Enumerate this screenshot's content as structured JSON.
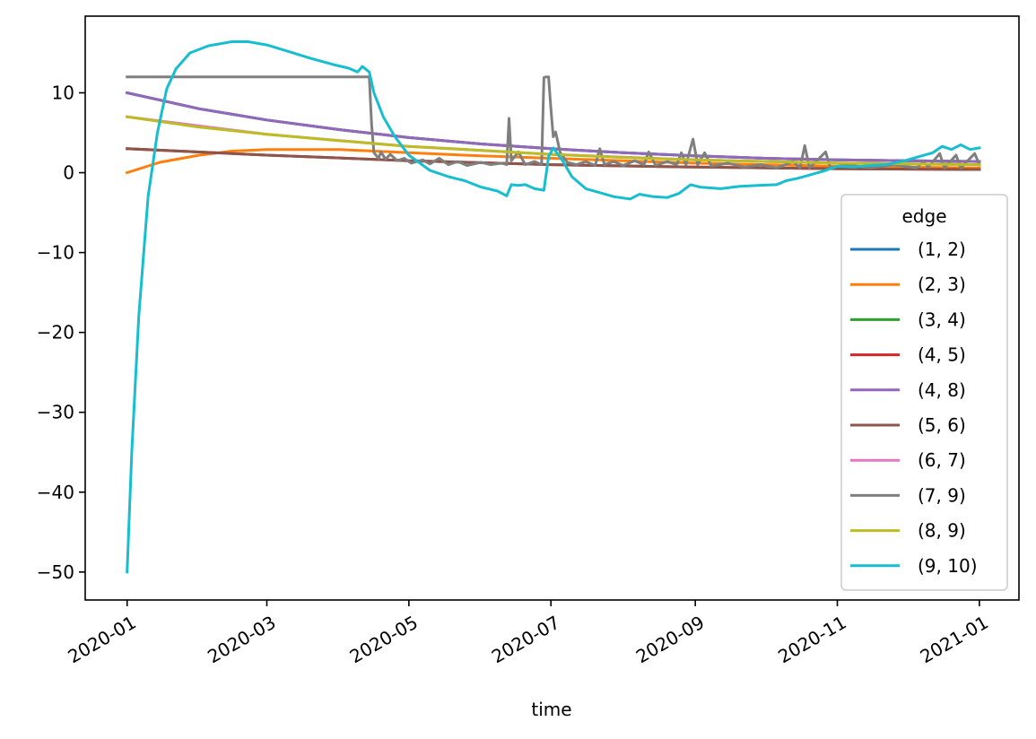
{
  "chart_data": {
    "type": "line",
    "title": "",
    "xlabel": "time",
    "ylabel": "",
    "xlim": [
      "2019-12-14",
      "2021-01-18"
    ],
    "ylim": [
      -53.5,
      19.6
    ],
    "x_ticks": [
      {
        "date": "2020-01-01",
        "label": "2020-01"
      },
      {
        "date": "2020-03-01",
        "label": "2020-03"
      },
      {
        "date": "2020-05-01",
        "label": "2020-05"
      },
      {
        "date": "2020-07-01",
        "label": "2020-07"
      },
      {
        "date": "2020-09-01",
        "label": "2020-09"
      },
      {
        "date": "2020-11-01",
        "label": "2020-11"
      },
      {
        "date": "2021-01-01",
        "label": "2021-01"
      }
    ],
    "y_ticks": [
      {
        "value": 10,
        "label": "10"
      },
      {
        "value": 0,
        "label": "0"
      },
      {
        "value": -10,
        "label": "−10"
      },
      {
        "value": -20,
        "label": "−20"
      },
      {
        "value": -30,
        "label": "−30"
      },
      {
        "value": -40,
        "label": "−40"
      },
      {
        "value": -50,
        "label": "−50"
      }
    ],
    "grid": false,
    "legend": {
      "title": "edge",
      "position": "lower-right"
    },
    "series": [
      {
        "name": "(1, 2)",
        "color": "#1f77b4",
        "points": [
          [
            "2020-01-01",
            10.0
          ],
          [
            "2020-02-01",
            8.0
          ],
          [
            "2020-03-01",
            6.6
          ],
          [
            "2020-04-01",
            5.4
          ],
          [
            "2020-05-01",
            4.4
          ],
          [
            "2020-06-01",
            3.6
          ],
          [
            "2020-07-01",
            3.0
          ],
          [
            "2020-08-01",
            2.5
          ],
          [
            "2020-09-01",
            2.1
          ],
          [
            "2020-10-01",
            1.8
          ],
          [
            "2020-11-01",
            1.6
          ],
          [
            "2020-12-01",
            1.5
          ],
          [
            "2021-01-01",
            1.4
          ]
        ]
      },
      {
        "name": "(2, 3)",
        "color": "#ff7f0e",
        "points": [
          [
            "2020-01-01",
            0.0
          ],
          [
            "2020-01-15",
            1.3
          ],
          [
            "2020-02-01",
            2.2
          ],
          [
            "2020-02-15",
            2.7
          ],
          [
            "2020-03-01",
            2.9
          ],
          [
            "2020-04-01",
            2.9
          ],
          [
            "2020-05-01",
            2.5
          ],
          [
            "2020-06-01",
            2.1
          ],
          [
            "2020-07-01",
            1.8
          ],
          [
            "2020-08-01",
            1.5
          ],
          [
            "2020-09-01",
            1.2
          ],
          [
            "2020-10-01",
            1.0
          ],
          [
            "2020-11-01",
            0.8
          ],
          [
            "2020-12-01",
            0.7
          ],
          [
            "2021-01-01",
            0.6
          ]
        ]
      },
      {
        "name": "(3, 4)",
        "color": "#2ca02c",
        "points": [
          [
            "2020-01-01",
            10.0
          ],
          [
            "2020-02-01",
            8.0
          ],
          [
            "2020-03-01",
            6.6
          ],
          [
            "2020-04-01",
            5.4
          ],
          [
            "2020-05-01",
            4.4
          ],
          [
            "2020-06-01",
            3.6
          ],
          [
            "2020-07-01",
            3.0
          ],
          [
            "2020-08-01",
            2.5
          ],
          [
            "2020-09-01",
            2.1
          ],
          [
            "2020-10-01",
            1.8
          ],
          [
            "2020-11-01",
            1.6
          ],
          [
            "2020-12-01",
            1.5
          ],
          [
            "2021-01-01",
            1.4
          ]
        ]
      },
      {
        "name": "(4, 5)",
        "color": "#d62728",
        "points": [
          [
            "2020-01-01",
            3.0
          ],
          [
            "2020-03-01",
            2.2
          ],
          [
            "2020-05-01",
            1.5
          ],
          [
            "2020-07-01",
            1.0
          ],
          [
            "2020-09-01",
            0.7
          ],
          [
            "2020-11-01",
            0.5
          ],
          [
            "2021-01-01",
            0.4
          ]
        ]
      },
      {
        "name": "(4, 8)",
        "color": "#9467bd",
        "points": [
          [
            "2020-01-01",
            10.0
          ],
          [
            "2020-02-01",
            8.0
          ],
          [
            "2020-03-01",
            6.6
          ],
          [
            "2020-04-01",
            5.4
          ],
          [
            "2020-05-01",
            4.4
          ],
          [
            "2020-06-01",
            3.6
          ],
          [
            "2020-07-01",
            3.0
          ],
          [
            "2020-08-01",
            2.5
          ],
          [
            "2020-09-01",
            2.1
          ],
          [
            "2020-10-01",
            1.8
          ],
          [
            "2020-11-01",
            1.6
          ],
          [
            "2020-12-01",
            1.5
          ],
          [
            "2021-01-01",
            1.4
          ]
        ]
      },
      {
        "name": "(5, 6)",
        "color": "#8c564b",
        "points": [
          [
            "2020-01-01",
            3.0
          ],
          [
            "2020-03-01",
            2.2
          ],
          [
            "2020-05-01",
            1.5
          ],
          [
            "2020-07-01",
            1.0
          ],
          [
            "2020-09-01",
            0.7
          ],
          [
            "2020-11-01",
            0.5
          ],
          [
            "2021-01-01",
            0.4
          ]
        ]
      },
      {
        "name": "(6, 7)",
        "color": "#e377c2",
        "points": [
          [
            "2020-01-01",
            7.0
          ],
          [
            "2020-03-01",
            4.8
          ],
          [
            "2020-05-01",
            3.3
          ],
          [
            "2020-07-01",
            2.3
          ],
          [
            "2020-09-01",
            1.6
          ],
          [
            "2020-11-01",
            1.2
          ],
          [
            "2021-01-01",
            1.0
          ]
        ]
      },
      {
        "name": "(7, 9)",
        "color": "#7f7f7f",
        "points": [
          [
            "2020-01-01",
            12.0
          ],
          [
            "2020-04-14",
            12.0
          ],
          [
            "2020-04-15",
            6.0
          ],
          [
            "2020-04-16",
            2.5
          ],
          [
            "2020-04-18",
            1.8
          ],
          [
            "2020-04-19",
            2.6
          ],
          [
            "2020-04-21",
            1.7
          ],
          [
            "2020-04-23",
            2.3
          ],
          [
            "2020-04-26",
            1.5
          ],
          [
            "2020-04-29",
            1.8
          ],
          [
            "2020-05-02",
            1.2
          ],
          [
            "2020-05-07",
            1.6
          ],
          [
            "2020-05-10",
            1.1
          ],
          [
            "2020-05-14",
            1.8
          ],
          [
            "2020-05-18",
            1.0
          ],
          [
            "2020-05-22",
            1.4
          ],
          [
            "2020-05-26",
            0.9
          ],
          [
            "2020-06-01",
            1.3
          ],
          [
            "2020-06-05",
            1.0
          ],
          [
            "2020-06-10",
            1.2
          ],
          [
            "2020-06-12",
            1.0
          ],
          [
            "2020-06-13",
            6.8
          ],
          [
            "2020-06-14",
            1.5
          ],
          [
            "2020-06-17",
            2.6
          ],
          [
            "2020-06-20",
            1.0
          ],
          [
            "2020-06-24",
            1.4
          ],
          [
            "2020-06-27",
            1.0
          ],
          [
            "2020-06-28",
            11.9
          ],
          [
            "2020-06-29",
            12.0
          ],
          [
            "2020-06-30",
            12.0
          ],
          [
            "2020-07-01",
            8.0
          ],
          [
            "2020-07-02",
            4.5
          ],
          [
            "2020-07-03",
            5.1
          ],
          [
            "2020-07-05",
            2.5
          ],
          [
            "2020-07-08",
            1.3
          ],
          [
            "2020-07-12",
            1.0
          ],
          [
            "2020-07-16",
            1.4
          ],
          [
            "2020-07-20",
            0.9
          ],
          [
            "2020-07-22",
            3.0
          ],
          [
            "2020-07-24",
            1.0
          ],
          [
            "2020-07-28",
            1.4
          ],
          [
            "2020-08-01",
            0.9
          ],
          [
            "2020-08-06",
            1.5
          ],
          [
            "2020-08-10",
            1.0
          ],
          [
            "2020-08-12",
            2.6
          ],
          [
            "2020-08-15",
            0.9
          ],
          [
            "2020-08-20",
            1.4
          ],
          [
            "2020-08-24",
            1.0
          ],
          [
            "2020-08-26",
            2.5
          ],
          [
            "2020-08-28",
            1.0
          ],
          [
            "2020-08-31",
            4.2
          ],
          [
            "2020-09-02",
            1.0
          ],
          [
            "2020-09-05",
            2.5
          ],
          [
            "2020-09-08",
            0.8
          ],
          [
            "2020-09-15",
            1.2
          ],
          [
            "2020-09-22",
            0.7
          ],
          [
            "2020-09-29",
            1.0
          ],
          [
            "2020-10-06",
            0.6
          ],
          [
            "2020-10-13",
            1.4
          ],
          [
            "2020-10-16",
            0.6
          ],
          [
            "2020-10-18",
            3.4
          ],
          [
            "2020-10-20",
            0.6
          ],
          [
            "2020-10-27",
            2.6
          ],
          [
            "2020-10-29",
            0.6
          ],
          [
            "2020-11-05",
            1.0
          ],
          [
            "2020-11-15",
            0.6
          ],
          [
            "2020-11-25",
            1.0
          ],
          [
            "2020-12-05",
            0.6
          ],
          [
            "2020-12-08",
            1.4
          ],
          [
            "2020-12-10",
            0.7
          ],
          [
            "2020-12-15",
            2.4
          ],
          [
            "2020-12-17",
            0.6
          ],
          [
            "2020-12-22",
            2.2
          ],
          [
            "2020-12-24",
            0.6
          ],
          [
            "2020-12-30",
            2.4
          ],
          [
            "2021-01-01",
            1.0
          ]
        ]
      },
      {
        "name": "(8, 9)",
        "color": "#bcbd22",
        "points": [
          [
            "2020-01-01",
            7.0
          ],
          [
            "2020-02-01",
            5.7
          ],
          [
            "2020-03-01",
            4.8
          ],
          [
            "2020-04-01",
            4.0
          ],
          [
            "2020-05-01",
            3.3
          ],
          [
            "2020-06-01",
            2.8
          ],
          [
            "2020-07-01",
            2.3
          ],
          [
            "2020-08-01",
            1.9
          ],
          [
            "2020-09-01",
            1.6
          ],
          [
            "2020-10-01",
            1.4
          ],
          [
            "2020-11-01",
            1.2
          ],
          [
            "2020-12-01",
            1.1
          ],
          [
            "2021-01-01",
            1.0
          ]
        ]
      },
      {
        "name": "(9, 10)",
        "color": "#17becf",
        "points": [
          [
            "2020-01-01",
            -50.0
          ],
          [
            "2020-01-03",
            -35.0
          ],
          [
            "2020-01-06",
            -18.0
          ],
          [
            "2020-01-10",
            -3.0
          ],
          [
            "2020-01-14",
            5.0
          ],
          [
            "2020-01-18",
            10.5
          ],
          [
            "2020-01-22",
            13.0
          ],
          [
            "2020-01-28",
            15.0
          ],
          [
            "2020-02-05",
            15.9
          ],
          [
            "2020-02-15",
            16.4
          ],
          [
            "2020-02-22",
            16.4
          ],
          [
            "2020-03-01",
            16.0
          ],
          [
            "2020-03-10",
            15.2
          ],
          [
            "2020-03-20",
            14.3
          ],
          [
            "2020-03-30",
            13.5
          ],
          [
            "2020-04-05",
            13.1
          ],
          [
            "2020-04-09",
            12.6
          ],
          [
            "2020-04-11",
            13.3
          ],
          [
            "2020-04-14",
            12.6
          ],
          [
            "2020-04-16",
            10.0
          ],
          [
            "2020-04-20",
            7.0
          ],
          [
            "2020-04-25",
            4.5
          ],
          [
            "2020-05-01",
            2.2
          ],
          [
            "2020-05-10",
            0.3
          ],
          [
            "2020-05-18",
            -0.5
          ],
          [
            "2020-05-25",
            -1.0
          ],
          [
            "2020-06-01",
            -1.8
          ],
          [
            "2020-06-08",
            -2.3
          ],
          [
            "2020-06-12",
            -2.9
          ],
          [
            "2020-06-14",
            -1.5
          ],
          [
            "2020-06-17",
            -1.6
          ],
          [
            "2020-06-20",
            -1.5
          ],
          [
            "2020-06-24",
            -2.0
          ],
          [
            "2020-06-28",
            -2.2
          ],
          [
            "2020-06-30",
            2.0
          ],
          [
            "2020-07-02",
            3.1
          ],
          [
            "2020-07-06",
            1.5
          ],
          [
            "2020-07-10",
            -0.5
          ],
          [
            "2020-07-16",
            -2.0
          ],
          [
            "2020-07-22",
            -2.5
          ],
          [
            "2020-07-28",
            -3.0
          ],
          [
            "2020-08-04",
            -3.3
          ],
          [
            "2020-08-08",
            -2.7
          ],
          [
            "2020-08-14",
            -3.0
          ],
          [
            "2020-08-20",
            -3.1
          ],
          [
            "2020-08-25",
            -2.6
          ],
          [
            "2020-08-30",
            -1.5
          ],
          [
            "2020-09-03",
            -1.8
          ],
          [
            "2020-09-12",
            -2.0
          ],
          [
            "2020-09-20",
            -1.7
          ],
          [
            "2020-09-28",
            -1.6
          ],
          [
            "2020-10-06",
            -1.5
          ],
          [
            "2020-10-10",
            -1.0
          ],
          [
            "2020-10-15",
            -0.7
          ],
          [
            "2020-10-20",
            -0.3
          ],
          [
            "2020-10-26",
            0.2
          ],
          [
            "2020-11-01",
            0.8
          ],
          [
            "2020-11-08",
            0.7
          ],
          [
            "2020-11-15",
            0.9
          ],
          [
            "2020-11-22",
            1.0
          ],
          [
            "2020-11-30",
            1.5
          ],
          [
            "2020-12-06",
            2.0
          ],
          [
            "2020-12-12",
            2.5
          ],
          [
            "2020-12-16",
            3.3
          ],
          [
            "2020-12-20",
            2.9
          ],
          [
            "2020-12-24",
            3.5
          ],
          [
            "2020-12-28",
            2.9
          ],
          [
            "2021-01-01",
            3.1
          ]
        ]
      }
    ]
  }
}
